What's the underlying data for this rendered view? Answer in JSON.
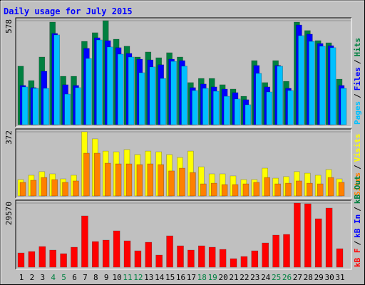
{
  "title": "Daily usage for July 2015",
  "legend_separator": "/",
  "chart_data": [
    {
      "type": "bar",
      "ylim": [
        0,
        578
      ],
      "yticks": [
        578
      ],
      "series": [
        {
          "name": "Hits",
          "color": "#008040",
          "values": [
            325,
            245,
            376,
            570,
            269,
            269,
            463,
            511,
            578,
            475,
            436,
            376,
            404,
            372,
            400,
            376,
            234,
            257,
            257,
            222,
            198,
            158,
            356,
            234,
            356,
            241,
            570,
            523,
            467,
            455,
            253
          ]
        },
        {
          "name": "Files",
          "color": "#0000ff",
          "values": [
            218,
            206,
            297,
            507,
            222,
            218,
            424,
            483,
            467,
            428,
            396,
            364,
            360,
            333,
            364,
            356,
            206,
            226,
            210,
            198,
            178,
            139,
            329,
            210,
            329,
            202,
            554,
            503,
            451,
            439,
            218
          ]
        },
        {
          "name": "Pages",
          "color": "#00c0ff",
          "values": [
            210,
            202,
            202,
            499,
            170,
            206,
            368,
            471,
            432,
            392,
            376,
            289,
            321,
            257,
            352,
            325,
            190,
            202,
            186,
            158,
            143,
            111,
            285,
            182,
            325,
            190,
            495,
            463,
            436,
            428,
            202
          ]
        }
      ]
    },
    {
      "type": "bar",
      "ylim": [
        0,
        372
      ],
      "yticks": [
        372
      ],
      "series": [
        {
          "name": "Visits",
          "color": "#ffff00",
          "values": [
            95,
            120,
            141,
            128,
            99,
            120,
            372,
            331,
            260,
            256,
            269,
            240,
            260,
            256,
            240,
            223,
            260,
            169,
            128,
            128,
            116,
            95,
            95,
            161,
            103,
            112,
            141,
            132,
            120,
            153,
            99
          ]
        },
        {
          "name": "Sites",
          "color": "#ff8000",
          "values": [
            79,
            91,
            107,
            95,
            79,
            87,
            248,
            248,
            190,
            186,
            186,
            182,
            186,
            182,
            145,
            161,
            136,
            70,
            74,
            66,
            66,
            70,
            79,
            107,
            70,
            74,
            87,
            74,
            70,
            107,
            79
          ]
        }
      ]
    },
    {
      "type": "bar",
      "ylim": [
        0,
        29570
      ],
      "yticks": [
        29570
      ],
      "categories": [
        "1",
        "2",
        "3",
        "4",
        "5",
        "6",
        "7",
        "8",
        "9",
        "10",
        "11",
        "12",
        "13",
        "14",
        "15",
        "16",
        "17",
        "18",
        "19",
        "20",
        "21",
        "22",
        "23",
        "24",
        "25",
        "26",
        "27",
        "28",
        "29",
        "30",
        "31"
      ],
      "category_colors": [
        "#000000",
        "#000000",
        "#000000",
        "#008040",
        "#008040",
        "#000000",
        "#000000",
        "#000000",
        "#000000",
        "#000000",
        "#008040",
        "#008040",
        "#000000",
        "#000000",
        "#000000",
        "#000000",
        "#000000",
        "#008040",
        "#008040",
        "#000000",
        "#000000",
        "#000000",
        "#000000",
        "#000000",
        "#008040",
        "#008040",
        "#000000",
        "#000000",
        "#000000",
        "#000000",
        "#000000"
      ],
      "series": [
        {
          "name": "kB F",
          "color": "#ff0000",
          "values": [
            6571,
            7228,
            9528,
            7885,
            6242,
            9200,
            23656,
            11828,
            12485,
            16756,
            12156,
            7557,
            11499,
            5585,
            14456,
            9857,
            7885,
            9857,
            9200,
            8214,
            3943,
            4928,
            7557,
            11171,
            14785,
            15113,
            29570,
            29242,
            22341,
            27270,
            8542
          ]
        },
        {
          "name": "kB In",
          "color": "#0000ff",
          "values": [
            null,
            null,
            null,
            null,
            null,
            null,
            null,
            null,
            null,
            null,
            null,
            null,
            null,
            null,
            null,
            null,
            null,
            null,
            null,
            null,
            null,
            null,
            null,
            null,
            null,
            null,
            null,
            null,
            null,
            null,
            null
          ]
        },
        {
          "name": "kB Out",
          "color": "#008040",
          "values": [
            null,
            null,
            null,
            null,
            null,
            null,
            null,
            null,
            null,
            null,
            null,
            null,
            null,
            null,
            null,
            null,
            null,
            null,
            null,
            null,
            null,
            null,
            null,
            null,
            null,
            null,
            null,
            null,
            null,
            null,
            null
          ]
        }
      ]
    }
  ]
}
